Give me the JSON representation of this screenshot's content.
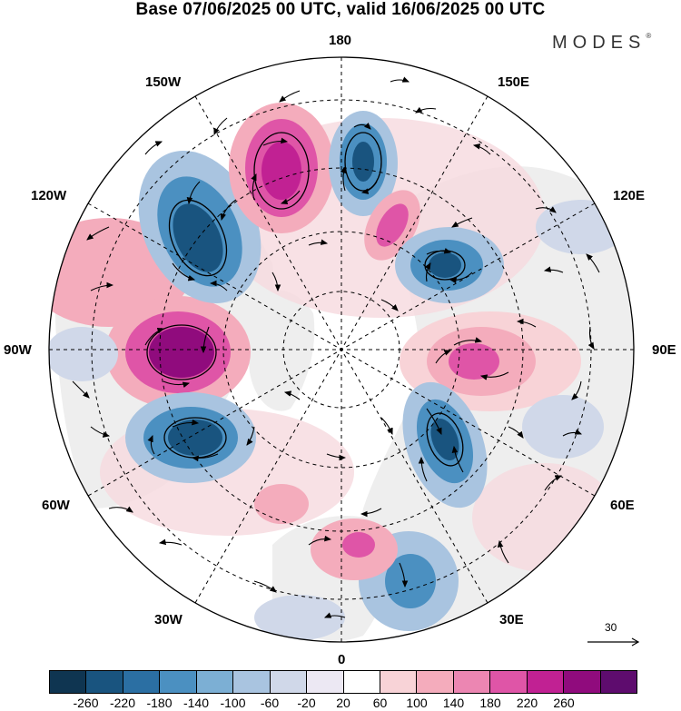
{
  "header": {
    "title": "Base 07/06/2025 00 UTC, valid 16/06/2025 00 UTC",
    "brand": "MODES",
    "brand_mark": "®"
  },
  "map": {
    "projection": "north-polar-stereographic",
    "longitude_labels": {
      "top": "180",
      "bottom": "0",
      "left": "90W",
      "right": "90E",
      "upper_left_1": "150W",
      "upper_left_2": "120W",
      "upper_right_1": "150E",
      "upper_right_2": "120E",
      "lower_left_1": "60W",
      "lower_left_2": "30W",
      "lower_right_1": "60E",
      "lower_right_2": "30E"
    },
    "reference_vector_label": "30",
    "colors": {
      "strong_negative": "#123e63",
      "negative": "#2f77ab",
      "weak_negative": "#c4cee1",
      "neutral": "#ffffff",
      "weak_positive": "#f6c7ce",
      "positive": "#e36da8",
      "strong_positive": "#9b0a7c",
      "continent_fill": "#eeeeee"
    }
  },
  "colorbar": {
    "colors": [
      "#0f3551",
      "#19547f",
      "#2b6fa3",
      "#4b90c1",
      "#7cafd4",
      "#a9c4e0",
      "#d0d8e9",
      "#ece8f3",
      "#ffffff",
      "#f8d3d7",
      "#f4acbc",
      "#ec86b2",
      "#df55a7",
      "#c12193",
      "#900b7d",
      "#5e0c6e"
    ],
    "ticks": [
      "-260",
      "-220",
      "-180",
      "-140",
      "-100",
      "-60",
      "-20",
      "20",
      "60",
      "100",
      "140",
      "180",
      "220",
      "260"
    ]
  }
}
